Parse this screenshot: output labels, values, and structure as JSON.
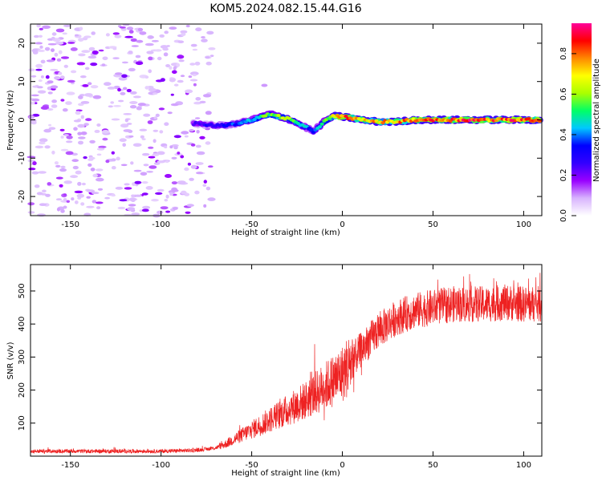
{
  "title": "KOM5.2024.082.15.44.G16",
  "chart_data": [
    {
      "type": "heatmap",
      "xlabel": "Height of straight line (km)",
      "ylabel": "Frequency (Hz)",
      "xlim": [
        -172,
        110
      ],
      "ylim": [
        -25,
        25
      ],
      "x_ticks": [
        -150,
        -100,
        -50,
        0,
        50,
        100
      ],
      "y_ticks": [
        -20,
        -10,
        0,
        10,
        20
      ],
      "colorbar": {
        "label": "Normalized spectral amplitude",
        "range": [
          0,
          0.95
        ],
        "ticks": [
          0.0,
          0.2,
          0.4,
          0.6,
          0.8
        ],
        "colormap": [
          "#ffffff",
          "#d8b4fe",
          "#9900ff",
          "#3300ff",
          "#0000ff",
          "#00c8ff",
          "#00ff66",
          "#aaff00",
          "#ffff00",
          "#ff8800",
          "#ff0000",
          "#ff0099"
        ]
      },
      "frequency_trace": {
        "x": [
          -80,
          -70,
          -60,
          -50,
          -40,
          -30,
          -20,
          -16,
          -10,
          -5,
          0,
          5,
          10,
          20,
          30,
          40,
          50,
          60,
          70,
          80,
          90,
          100,
          110
        ],
        "y": [
          -1,
          -1.5,
          -1.2,
          0,
          1.5,
          0.3,
          -2,
          -3,
          -0.5,
          1,
          0.8,
          0.5,
          0,
          -0.5,
          -0.5,
          0,
          0,
          0,
          0,
          0,
          0,
          0,
          0
        ],
        "amplitude": [
          0.25,
          0.3,
          0.35,
          0.45,
          0.55,
          0.65,
          0.4,
          0.35,
          0.5,
          0.7,
          0.85,
          0.8,
          0.75,
          0.7,
          0.75,
          0.8,
          0.85,
          0.82,
          0.85,
          0.8,
          0.82,
          0.85,
          0.8
        ]
      },
      "noise_region_x": [
        -172,
        -70
      ]
    },
    {
      "type": "line",
      "xlabel": "Height of straight line (km)",
      "ylabel": "SNR (v/v)",
      "xlim": [
        -172,
        110
      ],
      "ylim": [
        0,
        580
      ],
      "x_ticks": [
        -150,
        -100,
        -50,
        0,
        50,
        100
      ],
      "y_ticks": [
        100,
        200,
        300,
        400,
        500
      ],
      "color": "#ee2222",
      "series": [
        {
          "x": [
            -172,
            -150,
            -120,
            -100,
            -80,
            -70,
            -65,
            -60,
            -50,
            -40,
            -30,
            -20,
            -10,
            0,
            10,
            20,
            30,
            40,
            50,
            60,
            70,
            80,
            90,
            100,
            110
          ],
          "y": [
            15,
            15,
            15,
            15,
            18,
            25,
            35,
            50,
            80,
            110,
            140,
            170,
            210,
            250,
            320,
            380,
            420,
            440,
            450,
            460,
            460,
            460,
            465,
            460,
            460
          ]
        }
      ]
    }
  ]
}
